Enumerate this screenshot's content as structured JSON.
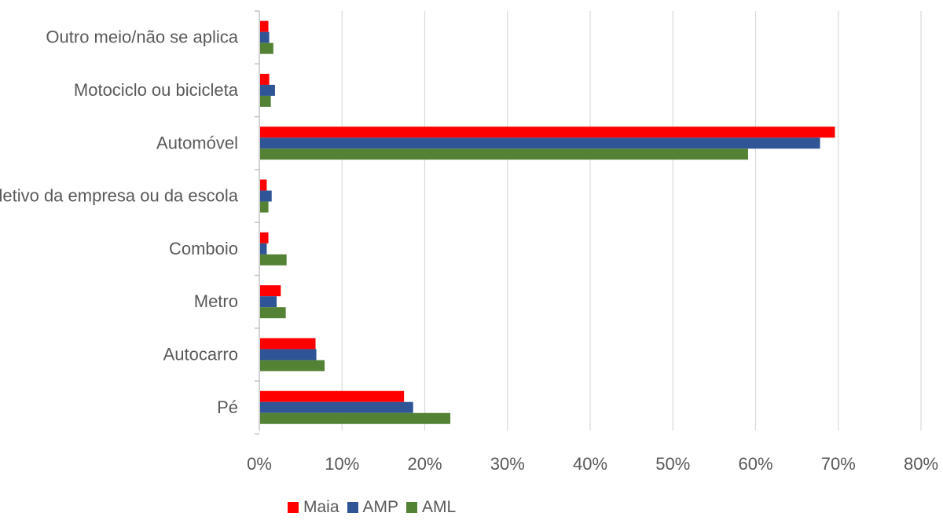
{
  "chart_data": {
    "type": "bar",
    "orientation": "horizontal",
    "categories": [
      "Pé",
      "Autocarro",
      "Metro",
      "Comboio ",
      "Transporte coletivo da empresa ou da escola",
      "Automóvel",
      "Motociclo ou bicicleta",
      "Outro meio/não se aplica"
    ],
    "series": [
      {
        "name": "Maia",
        "color": "#ff0000",
        "values": [
          0.174,
          0.067,
          0.025,
          0.01,
          0.008,
          0.695,
          0.011,
          0.01
        ]
      },
      {
        "name": "AMP",
        "color": "#2f5597",
        "values": [
          0.185,
          0.068,
          0.02,
          0.008,
          0.014,
          0.677,
          0.018,
          0.011
        ]
      },
      {
        "name": "AML",
        "color": "#548235",
        "values": [
          0.23,
          0.078,
          0.031,
          0.032,
          0.01,
          0.59,
          0.013,
          0.016
        ]
      }
    ],
    "xlim": [
      0,
      0.8
    ],
    "xticks": [
      "0%",
      "10%",
      "20%",
      "30%",
      "40%",
      "50%",
      "60%",
      "70%",
      "80%"
    ],
    "title": "",
    "xlabel": "",
    "ylabel": "",
    "grid": "vertical",
    "legend": "bottom"
  }
}
